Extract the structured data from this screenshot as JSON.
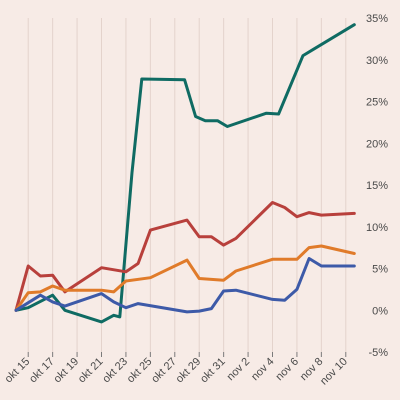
{
  "chart_data": {
    "type": "line",
    "title": "",
    "xlabel": "",
    "ylabel": "",
    "x_ticks": [
      "okt 15",
      "okt 17",
      "okt 19",
      "okt 21",
      "okt 23",
      "okt 25",
      "okt 27",
      "okt 29",
      "okt 31",
      "nov 2",
      "nov 4",
      "nov 6",
      "nov 8",
      "nov 10"
    ],
    "x_domain": [
      "okt 14",
      "nov 11"
    ],
    "y_ticks": [
      -5,
      0,
      5,
      10,
      15,
      20,
      25,
      30,
      35
    ],
    "y_tick_labels": [
      "-5%",
      "0%",
      "5%",
      "10%",
      "15%",
      "20%",
      "25%",
      "30%",
      "35%"
    ],
    "ylim": [
      -5,
      35
    ],
    "grid": "vertical",
    "series": [
      {
        "color": "#0f6b63",
        "points": [
          [
            "okt 14",
            0
          ],
          [
            "okt 15",
            0.3
          ],
          [
            "okt 17",
            1.8
          ],
          [
            "okt 18",
            0
          ],
          [
            "okt 21",
            -1.4
          ],
          [
            "okt 22",
            -0.6
          ],
          [
            "okt 22.5",
            -0.8
          ],
          [
            "okt 23.5",
            16.5
          ],
          [
            "okt 24.3",
            27.7
          ],
          [
            "okt 27.8",
            27.6
          ],
          [
            "okt 28.7",
            23.2
          ],
          [
            "okt 29.5",
            22.7
          ],
          [
            "okt 30.5",
            22.7
          ],
          [
            "okt 31.3",
            22.0
          ],
          [
            "nov 3.5",
            23.6
          ],
          [
            "nov 4.5",
            23.5
          ],
          [
            "nov 6.5",
            30.5
          ],
          [
            "nov 7.3",
            31.2
          ],
          [
            "nov 10.7",
            34.2
          ]
        ]
      },
      {
        "color": "#b8403c",
        "points": [
          [
            "okt 14",
            0
          ],
          [
            "okt 15",
            5.3
          ],
          [
            "okt 16",
            4.1
          ],
          [
            "okt 17",
            4.2
          ],
          [
            "okt 18",
            2.2
          ],
          [
            "okt 21",
            5.1
          ],
          [
            "okt 23",
            4.6
          ],
          [
            "okt 24",
            5.6
          ],
          [
            "okt 25",
            9.6
          ],
          [
            "okt 28",
            10.8
          ],
          [
            "okt 29",
            8.8
          ],
          [
            "okt 30",
            8.8
          ],
          [
            "okt 31",
            7.8
          ],
          [
            "nov 1",
            8.6
          ],
          [
            "nov 4",
            12.9
          ],
          [
            "nov 5",
            12.3
          ],
          [
            "nov 6",
            11.2
          ],
          [
            "nov 7",
            11.7
          ],
          [
            "nov 8",
            11.4
          ],
          [
            "nov 10.7",
            11.6
          ]
        ]
      },
      {
        "color": "#e07b2a",
        "points": [
          [
            "okt 14",
            0
          ],
          [
            "okt 15",
            2.1
          ],
          [
            "okt 16",
            2.2
          ],
          [
            "okt 17",
            2.9
          ],
          [
            "okt 18",
            2.4
          ],
          [
            "okt 21",
            2.4
          ],
          [
            "okt 22",
            2.2
          ],
          [
            "okt 23",
            3.5
          ],
          [
            "okt 25",
            3.9
          ],
          [
            "okt 28",
            6.0
          ],
          [
            "okt 29",
            3.8
          ],
          [
            "okt 31",
            3.6
          ],
          [
            "nov 1",
            4.7
          ],
          [
            "nov 4",
            6.1
          ],
          [
            "nov 6",
            6.1
          ],
          [
            "nov 7",
            7.5
          ],
          [
            "nov 8",
            7.7
          ],
          [
            "nov 10.7",
            6.8
          ]
        ]
      },
      {
        "color": "#3d5aa8",
        "points": [
          [
            "okt 14",
            0
          ],
          [
            "okt 16",
            1.8
          ],
          [
            "okt 17",
            1.0
          ],
          [
            "okt 18",
            0.5
          ],
          [
            "okt 21",
            2.0
          ],
          [
            "okt 22",
            1.0
          ],
          [
            "okt 23",
            0.3
          ],
          [
            "okt 24",
            0.8
          ],
          [
            "okt 28",
            -0.2
          ],
          [
            "okt 29",
            -0.1
          ],
          [
            "okt 30",
            0.2
          ],
          [
            "okt 31",
            2.3
          ],
          [
            "nov 1",
            2.4
          ],
          [
            "nov 4",
            1.3
          ],
          [
            "nov 5",
            1.2
          ],
          [
            "nov 6",
            2.5
          ],
          [
            "nov 7",
            6.2
          ],
          [
            "nov 8",
            5.3
          ],
          [
            "nov 10.7",
            5.3
          ]
        ]
      }
    ]
  }
}
